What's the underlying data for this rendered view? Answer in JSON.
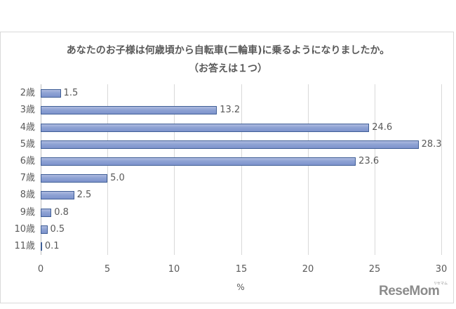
{
  "chart_data": {
    "type": "bar",
    "orientation": "horizontal",
    "title": "あなたのお子様は何歳頃から自転車(二輪車)に乗るようになりましたか。",
    "subtitle": "（お答えは１つ）",
    "categories": [
      "2歳",
      "3歳",
      "4歳",
      "5歳",
      "6歳",
      "7歳",
      "8歳",
      "9歳",
      "10歳",
      "11歳"
    ],
    "values": [
      1.5,
      13.2,
      24.6,
      28.3,
      23.6,
      5.0,
      2.5,
      0.8,
      0.5,
      0.1
    ],
    "value_labels": [
      "1.5",
      "13.2",
      "24.6",
      "28.3",
      "23.6",
      "5.0",
      "2.5",
      "0.8",
      "0.5",
      "0.1"
    ],
    "xlabel": "%",
    "ylabel": "",
    "xlim": [
      0,
      30
    ],
    "x_ticks": [
      "0",
      "5",
      "10",
      "15",
      "20",
      "25",
      "30"
    ],
    "grid": true,
    "legend": null,
    "bar_color": "#8ea2d4",
    "bar_border_color": "#3f5e96"
  },
  "watermark": {
    "text": "ReseMom",
    "subtext": "リセマム"
  }
}
